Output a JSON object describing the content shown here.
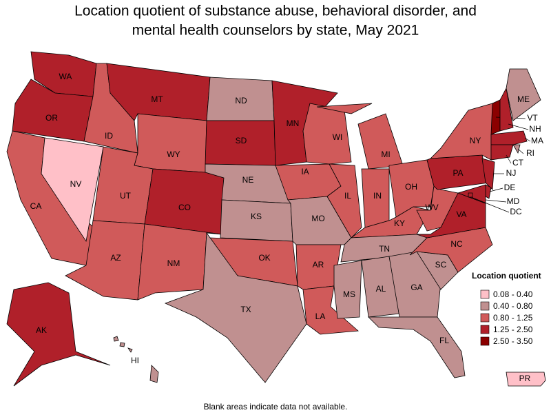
{
  "title": [
    "Location quotient of substance abuse, behavioral disorder, and",
    "mental health counselors by state, May 2021"
  ],
  "legend": {
    "title": "Location quotient",
    "items": [
      {
        "label": "0.08 - 0.40",
        "color": "#ffc0c8"
      },
      {
        "label": "0.40 - 0.80",
        "color": "#c09090"
      },
      {
        "label": "0.80 - 1.25",
        "color": "#d05a5a"
      },
      {
        "label": "1.25 - 2.50",
        "color": "#b0202a"
      },
      {
        "label": "2.50 - 3.50",
        "color": "#8b0000"
      }
    ]
  },
  "states": [
    {
      "label": "WA",
      "color": "#b0202a"
    },
    {
      "label": "OR",
      "color": "#b0202a"
    },
    {
      "label": "CA",
      "color": "#d05a5a"
    },
    {
      "label": "NV",
      "color": "#ffc0c8"
    },
    {
      "label": "ID",
      "color": "#d05a5a"
    },
    {
      "label": "MT",
      "color": "#b0202a"
    },
    {
      "label": "WY",
      "color": "#d05a5a"
    },
    {
      "label": "UT",
      "color": "#d05a5a"
    },
    {
      "label": "CO",
      "color": "#b0202a"
    },
    {
      "label": "AZ",
      "color": "#d05a5a"
    },
    {
      "label": "NM",
      "color": "#d05a5a"
    },
    {
      "label": "ND",
      "color": "#c09090"
    },
    {
      "label": "SD",
      "color": "#b0202a"
    },
    {
      "label": "NE",
      "color": "#c09090"
    },
    {
      "label": "KS",
      "color": "#c09090"
    },
    {
      "label": "OK",
      "color": "#d05a5a"
    },
    {
      "label": "TX",
      "color": "#c09090"
    },
    {
      "label": "MN",
      "color": "#b0202a"
    },
    {
      "label": "IA",
      "color": "#d05a5a"
    },
    {
      "label": "MO",
      "color": "#c09090"
    },
    {
      "label": "AR",
      "color": "#d05a5a"
    },
    {
      "label": "LA",
      "color": "#d05a5a"
    },
    {
      "label": "WI",
      "color": "#d05a5a"
    },
    {
      "label": "IL",
      "color": "#d05a5a"
    },
    {
      "label": "MI",
      "color": "#d05a5a"
    },
    {
      "label": "IN",
      "color": "#d05a5a"
    },
    {
      "label": "OH",
      "color": "#d05a5a"
    },
    {
      "label": "KY",
      "color": "#d05a5a"
    },
    {
      "label": "TN",
      "color": "#c09090"
    },
    {
      "label": "MS",
      "color": "#c09090"
    },
    {
      "label": "AL",
      "color": "#c09090"
    },
    {
      "label": "GA",
      "color": "#c09090"
    },
    {
      "label": "FL",
      "color": "#c09090"
    },
    {
      "label": "SC",
      "color": "#c09090"
    },
    {
      "label": "NC",
      "color": "#d05a5a"
    },
    {
      "label": "VA",
      "color": "#b0202a"
    },
    {
      "label": "WV",
      "color": "#d05a5a"
    },
    {
      "label": "PA",
      "color": "#b0202a"
    },
    {
      "label": "NY",
      "color": "#d05a5a"
    },
    {
      "label": "NJ",
      "color": "#b0202a"
    },
    {
      "label": "DE",
      "color": "#b0202a"
    },
    {
      "label": "MD",
      "color": "#b0202a"
    },
    {
      "label": "DC",
      "color": "#b0202a"
    },
    {
      "label": "VT",
      "color": "#8b0000"
    },
    {
      "label": "NH",
      "color": "#b0202a"
    },
    {
      "label": "ME",
      "color": "#c09090"
    },
    {
      "label": "MA",
      "color": "#b0202a"
    },
    {
      "label": "RI",
      "color": "#c09090"
    },
    {
      "label": "CT",
      "color": "#b0202a"
    },
    {
      "label": "AK",
      "color": "#b0202a"
    },
    {
      "label": "HI",
      "color": "#c09090"
    },
    {
      "label": "PR",
      "color": "#ffc0c8"
    }
  ],
  "note": "Blank areas indicate data not available."
}
